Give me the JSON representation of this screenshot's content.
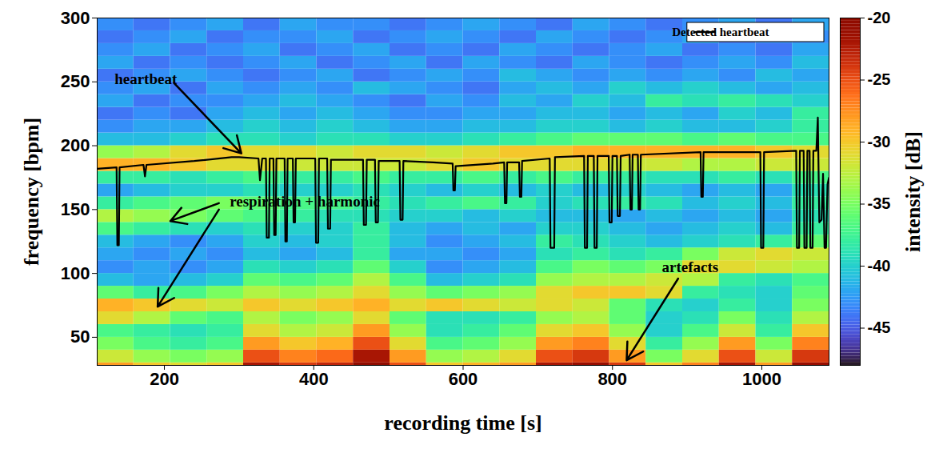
{
  "chart_data": {
    "type": "heatmap",
    "x_label": "recording time [s]",
    "y_label": "frequency [bpm]",
    "xlim": [
      110,
      1090
    ],
    "xticks": [
      200,
      400,
      600,
      800,
      1000
    ],
    "ylim": [
      28,
      300
    ],
    "yticks": [
      50,
      100,
      150,
      200,
      250,
      300
    ],
    "cells": {
      "x_edges": [
        110,
        159,
        208,
        257,
        306,
        355,
        404,
        453,
        502,
        551,
        600,
        649,
        698,
        747,
        796,
        845,
        894,
        943,
        992,
        1041,
        1090
      ],
      "y_edges": [
        20,
        30,
        40,
        50,
        60,
        70,
        80,
        90,
        100,
        110,
        120,
        130,
        140,
        150,
        160,
        170,
        180,
        190,
        200,
        210,
        220,
        230,
        240,
        250,
        260,
        270,
        280,
        290,
        300
      ],
      "values": [
        [
          -28,
          -30,
          -31,
          -30,
          -22,
          -24,
          -23,
          -20,
          -25,
          -30,
          -29,
          -28,
          -22,
          -21,
          -24,
          -30,
          -27,
          -22,
          -28,
          -21
        ],
        [
          -32,
          -34,
          -35,
          -34,
          -25,
          -27,
          -26,
          -22,
          -28,
          -34,
          -33,
          -31,
          -25,
          -24,
          -28,
          -35,
          -31,
          -25,
          -32,
          -24
        ],
        [
          -35,
          -37,
          -38,
          -37,
          -28,
          -30,
          -29,
          -25,
          -31,
          -37,
          -36,
          -34,
          -28,
          -27,
          -31,
          -38,
          -34,
          -28,
          -35,
          -27
        ],
        [
          -37,
          -38,
          -39,
          -38,
          -31,
          -33,
          -32,
          -28,
          -34,
          -39,
          -38,
          -36,
          -31,
          -30,
          -34,
          -40,
          -37,
          -32,
          -38,
          -30
        ],
        [
          -31,
          -33,
          -36,
          -37,
          -33,
          -35,
          -34,
          -31,
          -36,
          -39,
          -39,
          -38,
          -34,
          -33,
          -36,
          -40,
          -39,
          -35,
          -39,
          -33
        ],
        [
          -29,
          -30,
          -31,
          -32,
          -30,
          -31,
          -30,
          -29,
          -31,
          -30,
          -31,
          -32,
          -31,
          -32,
          -36,
          -39,
          -40,
          -38,
          -40,
          -35
        ],
        [
          -36,
          -38,
          -37,
          -35,
          -33,
          -34,
          -33,
          -31,
          -34,
          -36,
          -35,
          -34,
          -31,
          -30,
          -30,
          -31,
          -38,
          -39,
          -40,
          -36
        ],
        [
          -41,
          -42,
          -41,
          -40,
          -36,
          -37,
          -36,
          -33,
          -37,
          -41,
          -40,
          -39,
          -34,
          -33,
          -33,
          -32,
          -33,
          -38,
          -39,
          -37
        ],
        [
          -43,
          -42,
          -43,
          -42,
          -39,
          -40,
          -39,
          -36,
          -40,
          -43,
          -42,
          -41,
          -37,
          -35,
          -36,
          -35,
          -31,
          -31,
          -32,
          -33
        ],
        [
          -42,
          -43,
          -42,
          -43,
          -41,
          -42,
          -41,
          -38,
          -42,
          -42,
          -43,
          -42,
          -39,
          -38,
          -39,
          -38,
          -35,
          -32,
          -31,
          -32
        ],
        [
          -41,
          -42,
          -43,
          -42,
          -40,
          -41,
          -40,
          -38,
          -41,
          -43,
          -42,
          -41,
          -38,
          -39,
          -40,
          -41,
          -40,
          -39,
          -38,
          -36
        ],
        [
          -37,
          -38,
          -39,
          -40,
          -39,
          -40,
          -40,
          -38,
          -41,
          -42,
          -41,
          -42,
          -40,
          -40,
          -41,
          -42,
          -41,
          -40,
          -41,
          -38
        ],
        [
          -33,
          -34,
          -35,
          -36,
          -37,
          -38,
          -39,
          -39,
          -40,
          -40,
          -41,
          -40,
          -41,
          -41,
          -42,
          -41,
          -42,
          -41,
          -42,
          -39
        ],
        [
          -38,
          -37,
          -36,
          -35,
          -36,
          -37,
          -37,
          -38,
          -39,
          -38,
          -37,
          -38,
          -40,
          -39,
          -38,
          -39,
          -41,
          -40,
          -41,
          -38
        ],
        [
          -42,
          -41,
          -40,
          -40,
          -39,
          -40,
          -40,
          -39,
          -40,
          -41,
          -40,
          -41,
          -40,
          -41,
          -40,
          -41,
          -42,
          -41,
          -42,
          -39
        ],
        [
          -38,
          -38,
          -39,
          -38,
          -37,
          -38,
          -38,
          -37,
          -38,
          -38,
          -37,
          -38,
          -37,
          -38,
          -38,
          -39,
          -39,
          -38,
          -39,
          -37
        ],
        [
          -29,
          -29,
          -30,
          -31,
          -31,
          -32,
          -32,
          -32,
          -32,
          -31,
          -30,
          -31,
          -31,
          -31,
          -32,
          -32,
          -33,
          -33,
          -32,
          -32
        ],
        [
          -34,
          -33,
          -31,
          -30,
          -31,
          -31,
          -32,
          -31,
          -31,
          -32,
          -31,
          -30,
          -30,
          -29,
          -29,
          -29,
          -29,
          -29,
          -30,
          -31
        ],
        [
          -41,
          -41,
          -40,
          -39,
          -39,
          -40,
          -39,
          -39,
          -40,
          -40,
          -39,
          -38,
          -37,
          -36,
          -36,
          -36,
          -37,
          -36,
          -37,
          -37
        ],
        [
          -43,
          -42,
          -42,
          -41,
          -40,
          -41,
          -40,
          -41,
          -42,
          -42,
          -41,
          -41,
          -40,
          -40,
          -41,
          -40,
          -41,
          -41,
          -40,
          -38
        ],
        [
          -44,
          -43,
          -44,
          -42,
          -41,
          -42,
          -41,
          -42,
          -43,
          -43,
          -42,
          -42,
          -41,
          -41,
          -42,
          -41,
          -42,
          -40,
          -41,
          -38
        ],
        [
          -42,
          -44,
          -43,
          -43,
          -42,
          -41,
          -42,
          -43,
          -44,
          -42,
          -43,
          -41,
          -42,
          -40,
          -41,
          -38,
          -39,
          -38,
          -39,
          -40
        ],
        [
          -43,
          -42,
          -44,
          -42,
          -43,
          -42,
          -43,
          -41,
          -42,
          -43,
          -44,
          -42,
          -41,
          -42,
          -40,
          -41,
          -40,
          -41,
          -42,
          -41
        ],
        [
          -44,
          -43,
          -42,
          -43,
          -44,
          -43,
          -42,
          -44,
          -43,
          -42,
          -43,
          -41,
          -42,
          -43,
          -42,
          -43,
          -42,
          -43,
          -41,
          -42
        ],
        [
          -42,
          -44,
          -43,
          -44,
          -43,
          -42,
          -44,
          -43,
          -42,
          -44,
          -42,
          -43,
          -44,
          -42,
          -43,
          -44,
          -43,
          -42,
          -43,
          -41
        ],
        [
          -43,
          -42,
          -44,
          -43,
          -42,
          -44,
          -43,
          -42,
          -44,
          -43,
          -44,
          -42,
          -43,
          -44,
          -43,
          -42,
          -44,
          -43,
          -44,
          -42
        ],
        [
          -44,
          -43,
          -42,
          -44,
          -43,
          -43,
          -42,
          -44,
          -43,
          -42,
          -43,
          -44,
          -42,
          -43,
          -44,
          -43,
          -42,
          -44,
          -43,
          -43
        ],
        [
          -43,
          -44,
          -43,
          -42,
          -44,
          -42,
          -43,
          -43,
          -44,
          -43,
          -42,
          -43,
          -44,
          -42,
          -43,
          -44,
          -43,
          -42,
          -44,
          -42
        ]
      ]
    },
    "colorbar": {
      "label": "intensity [dB]",
      "lim": [
        -48,
        -20
      ],
      "ticks": [
        -45,
        -40,
        -35,
        -30,
        -25,
        -20
      ]
    },
    "series": [
      {
        "name": "Detected heartbeat",
        "type": "line",
        "color": "#000000",
        "x": [
          110,
          136,
          137,
          139,
          140,
          172,
          174,
          176,
          240,
          290,
          300,
          326,
          328,
          331,
          336,
          337,
          340,
          341,
          346,
          347,
          349,
          350,
          361,
          362,
          364,
          365,
          372,
          373,
          375,
          376,
          402,
          403,
          406,
          407,
          418,
          419,
          422,
          423,
          466,
          467,
          470,
          471,
          482,
          483,
          486,
          487,
          515,
          516,
          519,
          520,
          560,
          586,
          587,
          589,
          590,
          640,
          655,
          656,
          658,
          659,
          675,
          676,
          678,
          679,
          716,
          717,
          722,
          723,
          762,
          763,
          766,
          767,
          775,
          776,
          779,
          780,
          795,
          796,
          799,
          800,
          806,
          807,
          810,
          811,
          823,
          824,
          826,
          827,
          834,
          835,
          837,
          838,
          918,
          919,
          921,
          922,
          998,
          999,
          1002,
          1003,
          1046,
          1047,
          1050,
          1051,
          1056,
          1057,
          1060,
          1061,
          1064,
          1065,
          1068,
          1069,
          1073,
          1075,
          1077,
          1080,
          1082,
          1084,
          1086,
          1088,
          1090
        ],
        "values": [
          182,
          183,
          122,
          122,
          183,
          185,
          176,
          185,
          188,
          191,
          191,
          190,
          173,
          190,
          190,
          128,
          128,
          190,
          190,
          130,
          130,
          190,
          190,
          125,
          125,
          190,
          190,
          140,
          140,
          190,
          190,
          124,
          124,
          190,
          190,
          135,
          135,
          189,
          189,
          138,
          138,
          189,
          189,
          140,
          140,
          188,
          188,
          142,
          142,
          188,
          187,
          186,
          165,
          165,
          184,
          186,
          187,
          155,
          155,
          187,
          187,
          160,
          160,
          188,
          190,
          120,
          120,
          191,
          192,
          120,
          120,
          192,
          192,
          120,
          120,
          192,
          192,
          140,
          140,
          192,
          192,
          145,
          145,
          192,
          193,
          150,
          150,
          193,
          193,
          150,
          150,
          193,
          195,
          160,
          160,
          195,
          195,
          120,
          120,
          195,
          196,
          120,
          120,
          196,
          196,
          120,
          120,
          196,
          196,
          120,
          120,
          196,
          196,
          222,
          140,
          142,
          178,
          120,
          120,
          170,
          175
        ]
      }
    ],
    "annotations": [
      "heartbeat",
      "respiration + harmonic",
      "artefacts"
    ],
    "legend": "top-right"
  }
}
